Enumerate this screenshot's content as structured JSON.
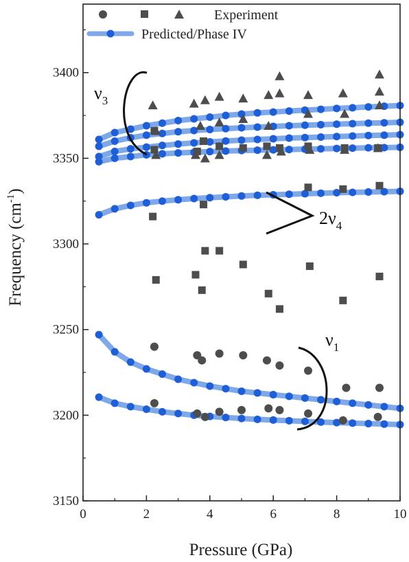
{
  "chart_data": {
    "type": "scatter",
    "title": "",
    "xlabel": "Pressure (GPa)",
    "ylabel": "Frequency (cm⁻¹)",
    "ylabel_main": "Frequency (cm",
    "ylabel_sup": "-1",
    "ylabel_close": ")",
    "xlim": [
      0,
      10
    ],
    "ylim": [
      3150,
      3440
    ],
    "x_ticks": [
      0,
      2,
      4,
      6,
      8,
      10
    ],
    "y_ticks": [
      3150,
      3200,
      3250,
      3300,
      3350,
      3400
    ],
    "grid": false,
    "legend_placement": "top",
    "legend": {
      "experiment_label": "Experiment",
      "predicted_label": "Predicted/Phase IV"
    },
    "colors": {
      "experiment": "#4d4d4d",
      "predicted_line": "#7fa8e8",
      "predicted_marker": "#1f5fd6"
    },
    "annotations": {
      "v3": {
        "base": "ν",
        "sub": "3"
      },
      "v4": {
        "base": "2ν",
        "sub": "4"
      },
      "v1": {
        "base": "ν",
        "sub": "1"
      }
    },
    "experiment": {
      "circles": [
        [
          2.25,
          3240
        ],
        [
          2.25,
          3207
        ],
        [
          3.6,
          3235
        ],
        [
          3.6,
          3201
        ],
        [
          3.75,
          3232
        ],
        [
          3.85,
          3199
        ],
        [
          4.3,
          3236
        ],
        [
          4.3,
          3202
        ],
        [
          5.05,
          3235
        ],
        [
          5.0,
          3203
        ],
        [
          5.8,
          3232
        ],
        [
          5.85,
          3204
        ],
        [
          6.2,
          3229
        ],
        [
          6.2,
          3203
        ],
        [
          7.1,
          3226
        ],
        [
          7.1,
          3201
        ],
        [
          8.3,
          3216
        ],
        [
          8.2,
          3197
        ],
        [
          9.35,
          3216
        ],
        [
          9.3,
          3199
        ]
      ],
      "squares": [
        [
          2.2,
          3316
        ],
        [
          2.3,
          3279
        ],
        [
          3.55,
          3282
        ],
        [
          3.75,
          3273
        ],
        [
          3.8,
          3323
        ],
        [
          3.85,
          3296
        ],
        [
          4.3,
          3296
        ],
        [
          5.05,
          3288
        ],
        [
          5.85,
          3271
        ],
        [
          6.2,
          3262
        ],
        [
          7.1,
          3333
        ],
        [
          7.15,
          3287
        ],
        [
          8.2,
          3332
        ],
        [
          8.2,
          3267
        ],
        [
          9.35,
          3334
        ],
        [
          9.35,
          3281
        ],
        [
          2.25,
          3366
        ],
        [
          2.25,
          3355
        ],
        [
          3.6,
          3354
        ],
        [
          3.8,
          3360
        ],
        [
          4.3,
          3357
        ],
        [
          5.05,
          3356
        ],
        [
          5.8,
          3357
        ],
        [
          6.2,
          3356
        ],
        [
          7.1,
          3357
        ],
        [
          8.25,
          3356
        ],
        [
          9.3,
          3356
        ]
      ],
      "triangles": [
        [
          2.2,
          3381
        ],
        [
          2.3,
          3366
        ],
        [
          2.3,
          3352
        ],
        [
          3.5,
          3382
        ],
        [
          3.55,
          3352
        ],
        [
          3.7,
          3369
        ],
        [
          3.85,
          3384
        ],
        [
          3.85,
          3350
        ],
        [
          4.3,
          3386
        ],
        [
          4.3,
          3371
        ],
        [
          4.3,
          3352
        ],
        [
          5.05,
          3385
        ],
        [
          5.05,
          3373
        ],
        [
          5.85,
          3387
        ],
        [
          5.85,
          3369
        ],
        [
          5.8,
          3352
        ],
        [
          6.2,
          3388
        ],
        [
          6.2,
          3398
        ],
        [
          6.25,
          3354
        ],
        [
          7.1,
          3387
        ],
        [
          7.1,
          3376
        ],
        [
          7.15,
          3355
        ],
        [
          8.2,
          3388
        ],
        [
          8.25,
          3376
        ],
        [
          8.25,
          3355
        ],
        [
          9.35,
          3399
        ],
        [
          9.35,
          3389
        ],
        [
          9.35,
          3381
        ],
        [
          9.3,
          3356
        ]
      ]
    },
    "predicted_x": [
      0.5,
      1.0,
      1.5,
      2.0,
      2.5,
      3.0,
      3.5,
      4.0,
      4.5,
      5.0,
      5.5,
      6.0,
      6.5,
      7.0,
      7.5,
      8.0,
      8.5,
      9.0,
      9.5,
      10.0
    ],
    "predicted_series": [
      {
        "values": [
          3361,
          3365,
          3367,
          3369,
          3370.5,
          3372,
          3373,
          3374,
          3375,
          3375.8,
          3376.5,
          3377,
          3377.6,
          3378.1,
          3378.6,
          3379.1,
          3379.5,
          3380,
          3380.4,
          3380.8
        ]
      },
      {
        "values": [
          3357,
          3360,
          3362,
          3363.5,
          3364.5,
          3365.5,
          3366.2,
          3366.8,
          3367.3,
          3367.8,
          3368.2,
          3368.6,
          3369,
          3369.3,
          3369.6,
          3369.9,
          3370.2,
          3370.5,
          3370.7,
          3371
        ]
      },
      {
        "values": [
          3351,
          3354,
          3355.5,
          3356.5,
          3357.5,
          3358.3,
          3359,
          3359.6,
          3360.1,
          3360.6,
          3361,
          3361.4,
          3361.8,
          3362.1,
          3362.4,
          3362.7,
          3363,
          3363.3,
          3363.5,
          3363.8
        ]
      },
      {
        "values": [
          3348,
          3350,
          3351,
          3352,
          3352.6,
          3353.1,
          3353.5,
          3353.9,
          3354.2,
          3354.5,
          3354.7,
          3354.9,
          3355.1,
          3355.3,
          3355.5,
          3355.7,
          3355.9,
          3356.1,
          3356.2,
          3356.4
        ]
      },
      {
        "values": [
          3317,
          3320.5,
          3322.5,
          3324,
          3325,
          3325.8,
          3326.5,
          3327,
          3327.5,
          3328,
          3328.4,
          3328.7,
          3329,
          3329.3,
          3329.6,
          3329.9,
          3330.1,
          3330.3,
          3330.5,
          3330.7
        ]
      },
      {
        "values": [
          3247,
          3237,
          3231,
          3227,
          3224,
          3221,
          3219,
          3217,
          3215.5,
          3214,
          3213,
          3212,
          3211,
          3210,
          3209,
          3208,
          3207,
          3206,
          3205,
          3204
        ]
      },
      {
        "values": [
          3210.5,
          3207,
          3205,
          3203.5,
          3202,
          3201,
          3200,
          3199.3,
          3198.7,
          3198.1,
          3197.6,
          3197.2,
          3196.8,
          3196.4,
          3196,
          3195.7,
          3195.4,
          3195.1,
          3194.8,
          3194.5
        ]
      }
    ]
  }
}
